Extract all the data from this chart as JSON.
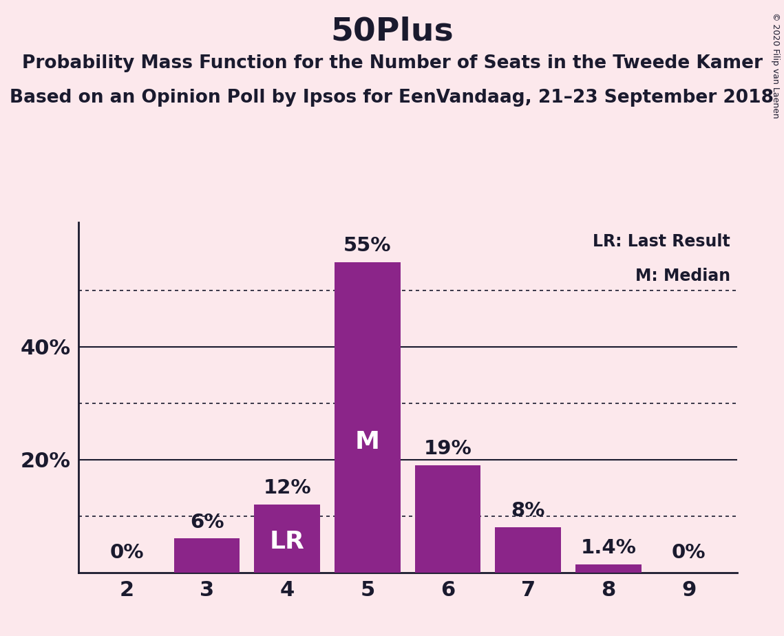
{
  "title": "50Plus",
  "subtitle1": "Probability Mass Function for the Number of Seats in the Tweede Kamer",
  "subtitle2": "Based on an Opinion Poll by Ipsos for EenVandaag, 21–23 September 2018",
  "copyright": "© 2020 Filip van Laenen",
  "seats": [
    2,
    3,
    4,
    5,
    6,
    7,
    8,
    9
  ],
  "probabilities": [
    0.0,
    6.0,
    12.0,
    55.0,
    19.0,
    8.0,
    1.4,
    0.0
  ],
  "bar_color": "#8B2589",
  "background_color": "#fce8ec",
  "label_lr_seat": 4,
  "label_m_seat": 5,
  "bar_labels": {
    "2": "0%",
    "3": "6%",
    "4": "12%",
    "5": "55%",
    "6": "19%",
    "7": "8%",
    "8": "1.4%",
    "9": "0%"
  },
  "ylim": [
    0,
    62
  ],
  "solid_gridlines": [
    20,
    40
  ],
  "dotted_gridlines": [
    10,
    30,
    50
  ],
  "legend_lr": "LR: Last Result",
  "legend_m": "M: Median",
  "title_fontsize": 34,
  "subtitle_fontsize": 19,
  "axis_tick_fontsize": 22,
  "bar_label_fontsize": 21,
  "inside_label_fontsize": 26,
  "legend_fontsize": 17,
  "copyright_fontsize": 9,
  "text_color": "#1a1a2e",
  "bar_width": 0.82
}
